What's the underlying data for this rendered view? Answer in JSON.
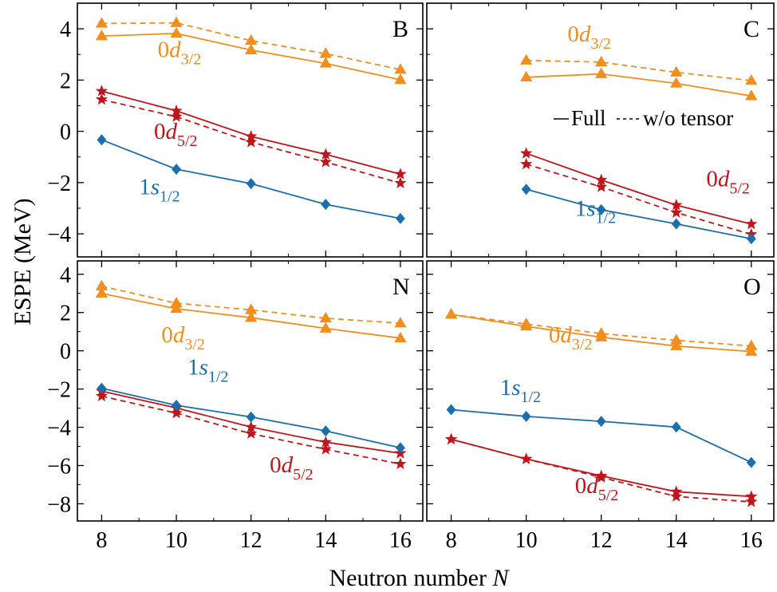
{
  "figure": {
    "ylabel": "ESPE (MeV)",
    "xlabel_text": "Neutron number ",
    "xlabel_symbol": "N",
    "legend": {
      "full_label": "Full",
      "notensor_label": "w/o tensor"
    },
    "colors": {
      "d32": "#F28E1C",
      "d52": "#C1151C",
      "s12": "#1B6FAE",
      "axis": "#000000"
    }
  },
  "chart_data": [
    {
      "type": "line",
      "panel": "B",
      "label": "B",
      "x": [
        8,
        10,
        12,
        14,
        16
      ],
      "ylim": [
        -4.9,
        5.0
      ],
      "yticks": [
        -4,
        -2,
        0,
        2,
        4
      ],
      "xticks": [
        8,
        10,
        12,
        14,
        16
      ],
      "series": [
        {
          "name": "0d3/2 Full",
          "orbit": "d32",
          "style": "full",
          "marker": "triangle",
          "x": [
            8,
            10,
            12,
            14,
            16
          ],
          "values": [
            3.72,
            3.82,
            3.17,
            2.65,
            2.01
          ]
        },
        {
          "name": "0d3/2 w/o tensor",
          "orbit": "d32",
          "style": "notensor",
          "marker": "triangle",
          "x": [
            8,
            10,
            12,
            14,
            16
          ],
          "values": [
            4.21,
            4.23,
            3.54,
            3.03,
            2.41
          ]
        },
        {
          "name": "0d5/2 Full",
          "orbit": "d52",
          "style": "full",
          "marker": "star",
          "x": [
            8,
            10,
            12,
            14,
            16
          ],
          "values": [
            1.57,
            0.8,
            -0.2,
            -0.9,
            -1.67
          ]
        },
        {
          "name": "0d5/2 w/o tensor",
          "orbit": "d52",
          "style": "notensor",
          "marker": "star",
          "x": [
            8,
            10,
            12,
            14,
            16
          ],
          "values": [
            1.24,
            0.57,
            -0.42,
            -1.2,
            -2.02
          ]
        },
        {
          "name": "1s1/2 Full",
          "orbit": "s12",
          "style": "full",
          "marker": "diamond",
          "x": [
            8,
            10,
            12,
            14,
            16
          ],
          "values": [
            -0.33,
            -1.48,
            -2.04,
            -2.85,
            -3.4
          ]
        }
      ],
      "annotations": [
        {
          "orbit": "d32",
          "base": "0",
          "ital": "d",
          "sub": "3/2",
          "x": 9.5,
          "y": 2.9
        },
        {
          "orbit": "d52",
          "base": "0",
          "ital": "d",
          "sub": "5/2",
          "x": 9.4,
          "y": -0.3
        },
        {
          "orbit": "s12",
          "base": "1",
          "ital": "s",
          "sub": "1/2",
          "x": 9.0,
          "y": -2.45
        }
      ]
    },
    {
      "type": "line",
      "panel": "C",
      "label": "C",
      "x": [
        10,
        12,
        14,
        16
      ],
      "ylim": [
        -4.9,
        5.0
      ],
      "yticks": [
        -4,
        -2,
        0,
        2,
        4
      ],
      "xticks": [
        8,
        10,
        12,
        14,
        16
      ],
      "series": [
        {
          "name": "0d3/2 Full",
          "orbit": "d32",
          "style": "full",
          "marker": "triangle",
          "x": [
            10,
            12,
            14,
            16
          ],
          "values": [
            2.11,
            2.24,
            1.87,
            1.38
          ]
        },
        {
          "name": "0d3/2 w/o tensor",
          "orbit": "d32",
          "style": "notensor",
          "marker": "triangle",
          "x": [
            10,
            12,
            14,
            16
          ],
          "values": [
            2.77,
            2.7,
            2.3,
            1.98
          ]
        },
        {
          "name": "0d5/2 Full",
          "orbit": "d52",
          "style": "full",
          "marker": "star",
          "x": [
            10,
            12,
            14,
            16
          ],
          "values": [
            -0.86,
            -1.9,
            -2.88,
            -3.62
          ]
        },
        {
          "name": "0d5/2 w/o tensor",
          "orbit": "d52",
          "style": "notensor",
          "marker": "star",
          "x": [
            10,
            12,
            14,
            16
          ],
          "values": [
            -1.28,
            -2.17,
            -3.17,
            -4.02
          ]
        },
        {
          "name": "1s1/2 Full",
          "orbit": "s12",
          "style": "full",
          "marker": "diamond",
          "x": [
            10,
            12,
            14,
            16
          ],
          "values": [
            -2.26,
            -3.06,
            -3.61,
            -4.19
          ]
        }
      ],
      "annotations": [
        {
          "orbit": "d32",
          "base": "0",
          "ital": "d",
          "sub": "3/2",
          "x": 11.1,
          "y": 3.5
        },
        {
          "orbit": "d52",
          "base": "0",
          "ital": "d",
          "sub": "5/2",
          "x": 14.8,
          "y": -2.15
        },
        {
          "orbit": "s12",
          "base": "1",
          "ital": "s",
          "sub": "1/2",
          "x": 11.3,
          "y": -3.3
        }
      ]
    },
    {
      "type": "line",
      "panel": "N",
      "label": "N",
      "x": [
        8,
        10,
        12,
        14,
        16
      ],
      "ylim": [
        -8.9,
        4.7
      ],
      "yticks": [
        -8,
        -6,
        -4,
        -2,
        0,
        2,
        4
      ],
      "xticks": [
        8,
        10,
        12,
        14,
        16
      ],
      "series": [
        {
          "name": "0d3/2 Full",
          "orbit": "d32",
          "style": "full",
          "marker": "triangle",
          "x": [
            8,
            10,
            12,
            14,
            16
          ],
          "values": [
            3.0,
            2.2,
            1.73,
            1.17,
            0.66
          ]
        },
        {
          "name": "0d3/2 w/o tensor",
          "orbit": "d32",
          "style": "notensor",
          "marker": "triangle",
          "x": [
            8,
            10,
            12,
            14,
            16
          ],
          "values": [
            3.38,
            2.49,
            2.14,
            1.7,
            1.44
          ]
        },
        {
          "name": "0d5/2 Full",
          "orbit": "d52",
          "style": "full",
          "marker": "star",
          "x": [
            8,
            10,
            12,
            14,
            16
          ],
          "values": [
            -2.11,
            -2.99,
            -3.99,
            -4.78,
            -5.36
          ]
        },
        {
          "name": "0d5/2 w/o tensor",
          "orbit": "d52",
          "style": "notensor",
          "marker": "star",
          "x": [
            8,
            10,
            12,
            14,
            16
          ],
          "values": [
            -2.37,
            -3.26,
            -4.33,
            -5.15,
            -5.92
          ]
        },
        {
          "name": "1s1/2 Full",
          "orbit": "s12",
          "style": "full",
          "marker": "diamond",
          "x": [
            8,
            10,
            12,
            14,
            16
          ],
          "values": [
            -1.96,
            -2.85,
            -3.46,
            -4.19,
            -5.07
          ]
        }
      ],
      "annotations": [
        {
          "orbit": "d32",
          "base": "0",
          "ital": "d",
          "sub": "3/2",
          "x": 9.6,
          "y": 0.45
        },
        {
          "orbit": "d52",
          "base": "0",
          "ital": "d",
          "sub": "5/2",
          "x": 12.5,
          "y": -6.35
        },
        {
          "orbit": "s12",
          "base": "1",
          "ital": "s",
          "sub": "1/2",
          "x": 10.3,
          "y": -1.25
        }
      ]
    },
    {
      "type": "line",
      "panel": "O",
      "label": "O",
      "x": [
        8,
        10,
        12,
        14,
        16
      ],
      "ylim": [
        -8.9,
        4.7
      ],
      "yticks": [
        -8,
        -6,
        -4,
        -2,
        0,
        2,
        4
      ],
      "xticks": [
        8,
        10,
        12,
        14,
        16
      ],
      "series": [
        {
          "name": "0d3/2 Full",
          "orbit": "d32",
          "style": "full",
          "marker": "triangle",
          "x": [
            8,
            10,
            12,
            14,
            16
          ],
          "values": [
            1.9,
            1.28,
            0.71,
            0.25,
            -0.04
          ]
        },
        {
          "name": "0d3/2 w/o tensor",
          "orbit": "d32",
          "style": "notensor",
          "marker": "triangle",
          "x": [
            8,
            10,
            12,
            14,
            16
          ],
          "values": [
            1.9,
            1.4,
            0.9,
            0.55,
            0.25
          ]
        },
        {
          "name": "0d5/2 Full",
          "orbit": "d52",
          "style": "full",
          "marker": "star",
          "x": [
            8,
            10,
            12,
            14,
            16
          ],
          "values": [
            -4.63,
            -5.66,
            -6.54,
            -7.37,
            -7.62
          ]
        },
        {
          "name": "0d5/2 w/o tensor",
          "orbit": "d52",
          "style": "notensor",
          "marker": "star",
          "x": [
            8,
            10,
            12,
            14,
            16
          ],
          "values": [
            -4.63,
            -5.66,
            -6.62,
            -7.62,
            -7.9
          ]
        },
        {
          "name": "1s1/2 Full",
          "orbit": "s12",
          "style": "full",
          "marker": "diamond",
          "x": [
            8,
            10,
            12,
            14,
            16
          ],
          "values": [
            -3.08,
            -3.43,
            -3.69,
            -3.99,
            -5.84
          ]
        }
      ],
      "annotations": [
        {
          "orbit": "d32",
          "base": "0",
          "ital": "d",
          "sub": "3/2",
          "x": 10.6,
          "y": 0.45
        },
        {
          "orbit": "d52",
          "base": "0",
          "ital": "d",
          "sub": "5/2",
          "x": 11.3,
          "y": -7.45
        },
        {
          "orbit": "s12",
          "base": "1",
          "ital": "s",
          "sub": "1/2",
          "x": 9.3,
          "y": -2.3
        }
      ]
    }
  ]
}
